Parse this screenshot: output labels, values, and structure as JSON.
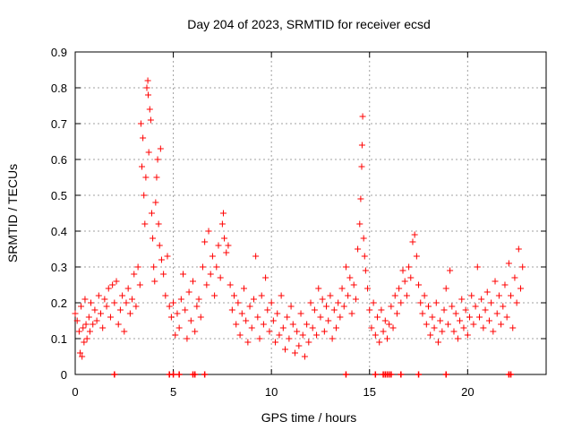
{
  "chart_data": {
    "type": "scatter",
    "title": "Day 204 of 2023, SRMTID for receiver ecsd",
    "xlabel": "GPS time / hours",
    "ylabel": "SRMTID / TECUs",
    "xlim": [
      0,
      24
    ],
    "ylim": [
      0,
      0.9
    ],
    "x_ticks": [
      "0",
      "5",
      "10",
      "15",
      "20"
    ],
    "x_tick_values": [
      0,
      5,
      10,
      15,
      20
    ],
    "y_ticks": [
      "0",
      "0.1",
      "0.2",
      "0.3",
      "0.4",
      "0.5",
      "0.6",
      "0.7",
      "0.8",
      "0.9"
    ],
    "y_tick_values": [
      0,
      0.1,
      0.2,
      0.3,
      0.4,
      0.5,
      0.6,
      0.7,
      0.8,
      0.9
    ],
    "grid": true,
    "series": [
      {
        "name": "SRMTID",
        "color": "#ff0000",
        "marker": "plus",
        "points": [
          [
            0.0,
            0.17
          ],
          [
            0.1,
            0.15
          ],
          [
            0.2,
            0.12
          ],
          [
            0.25,
            0.06
          ],
          [
            0.3,
            0.19
          ],
          [
            0.35,
            0.05
          ],
          [
            0.4,
            0.13
          ],
          [
            0.45,
            0.09
          ],
          [
            0.5,
            0.21
          ],
          [
            0.55,
            0.14
          ],
          [
            0.6,
            0.1
          ],
          [
            0.7,
            0.16
          ],
          [
            0.75,
            0.12
          ],
          [
            0.8,
            0.2
          ],
          [
            0.9,
            0.14
          ],
          [
            1.0,
            0.18
          ],
          [
            1.1,
            0.15
          ],
          [
            1.2,
            0.22
          ],
          [
            1.3,
            0.17
          ],
          [
            1.4,
            0.13
          ],
          [
            1.5,
            0.21
          ],
          [
            1.6,
            0.19
          ],
          [
            1.7,
            0.24
          ],
          [
            1.8,
            0.16
          ],
          [
            1.9,
            0.25
          ],
          [
            2.0,
            0.2
          ],
          [
            2.1,
            0.26
          ],
          [
            2.2,
            0.14
          ],
          [
            2.3,
            0.18
          ],
          [
            2.4,
            0.22
          ],
          [
            2.5,
            0.12
          ],
          [
            2.6,
            0.2
          ],
          [
            2.7,
            0.24
          ],
          [
            2.8,
            0.17
          ],
          [
            2.9,
            0.21
          ],
          [
            3.0,
            0.28
          ],
          [
            3.1,
            0.19
          ],
          [
            3.2,
            0.3
          ],
          [
            3.3,
            0.25
          ],
          [
            3.35,
            0.7
          ],
          [
            3.4,
            0.58
          ],
          [
            3.45,
            0.66
          ],
          [
            3.5,
            0.5
          ],
          [
            3.55,
            0.42
          ],
          [
            3.6,
            0.55
          ],
          [
            3.65,
            0.8
          ],
          [
            3.7,
            0.82
          ],
          [
            3.72,
            0.78
          ],
          [
            3.75,
            0.62
          ],
          [
            3.8,
            0.74
          ],
          [
            3.85,
            0.71
          ],
          [
            3.9,
            0.45
          ],
          [
            3.95,
            0.38
          ],
          [
            4.0,
            0.3
          ],
          [
            4.05,
            0.26
          ],
          [
            4.1,
            0.48
          ],
          [
            4.15,
            0.55
          ],
          [
            4.2,
            0.6
          ],
          [
            4.25,
            0.42
          ],
          [
            4.3,
            0.36
          ],
          [
            4.35,
            0.63
          ],
          [
            4.4,
            0.32
          ],
          [
            4.5,
            0.28
          ],
          [
            4.6,
            0.22
          ],
          [
            4.7,
            0.33
          ],
          [
            4.8,
            0.19
          ],
          [
            4.9,
            0.16
          ],
          [
            5.0,
            0.2
          ],
          [
            5.1,
            0.11
          ],
          [
            5.2,
            0.17
          ],
          [
            5.3,
            0.13
          ],
          [
            5.4,
            0.21
          ],
          [
            5.5,
            0.28
          ],
          [
            5.6,
            0.18
          ],
          [
            5.7,
            0.1
          ],
          [
            5.8,
            0.23
          ],
          [
            5.9,
            0.15
          ],
          [
            6.0,
            0.26
          ],
          [
            6.1,
            0.12
          ],
          [
            6.2,
            0.19
          ],
          [
            6.3,
            0.21
          ],
          [
            6.4,
            0.16
          ],
          [
            6.5,
            0.3
          ],
          [
            6.6,
            0.37
          ],
          [
            6.7,
            0.25
          ],
          [
            6.8,
            0.4
          ],
          [
            6.9,
            0.28
          ],
          [
            7.0,
            0.33
          ],
          [
            7.1,
            0.22
          ],
          [
            7.2,
            0.3
          ],
          [
            7.3,
            0.36
          ],
          [
            7.4,
            0.27
          ],
          [
            7.5,
            0.42
          ],
          [
            7.55,
            0.45
          ],
          [
            7.6,
            0.38
          ],
          [
            7.7,
            0.34
          ],
          [
            7.8,
            0.36
          ],
          [
            7.9,
            0.25
          ],
          [
            8.0,
            0.18
          ],
          [
            8.1,
            0.22
          ],
          [
            8.2,
            0.14
          ],
          [
            8.3,
            0.2
          ],
          [
            8.4,
            0.11
          ],
          [
            8.5,
            0.17
          ],
          [
            8.6,
            0.24
          ],
          [
            8.7,
            0.15
          ],
          [
            8.8,
            0.09
          ],
          [
            8.9,
            0.19
          ],
          [
            9.0,
            0.13
          ],
          [
            9.1,
            0.21
          ],
          [
            9.2,
            0.33
          ],
          [
            9.3,
            0.16
          ],
          [
            9.4,
            0.1
          ],
          [
            9.5,
            0.22
          ],
          [
            9.6,
            0.14
          ],
          [
            9.7,
            0.27
          ],
          [
            9.8,
            0.18
          ],
          [
            9.9,
            0.12
          ],
          [
            10.0,
            0.2
          ],
          [
            10.1,
            0.15
          ],
          [
            10.2,
            0.09
          ],
          [
            10.3,
            0.17
          ],
          [
            10.4,
            0.11
          ],
          [
            10.5,
            0.22
          ],
          [
            10.6,
            0.13
          ],
          [
            10.7,
            0.07
          ],
          [
            10.8,
            0.16
          ],
          [
            10.9,
            0.1
          ],
          [
            11.0,
            0.19
          ],
          [
            11.1,
            0.14
          ],
          [
            11.2,
            0.06
          ],
          [
            11.3,
            0.12
          ],
          [
            11.4,
            0.08
          ],
          [
            11.5,
            0.17
          ],
          [
            11.6,
            0.11
          ],
          [
            11.7,
            0.05
          ],
          [
            11.8,
            0.14
          ],
          [
            11.9,
            0.09
          ],
          [
            12.0,
            0.2
          ],
          [
            12.1,
            0.13
          ],
          [
            12.2,
            0.18
          ],
          [
            12.3,
            0.11
          ],
          [
            12.4,
            0.24
          ],
          [
            12.5,
            0.16
          ],
          [
            12.6,
            0.21
          ],
          [
            12.7,
            0.12
          ],
          [
            12.8,
            0.19
          ],
          [
            12.9,
            0.15
          ],
          [
            13.0,
            0.22
          ],
          [
            13.1,
            0.1
          ],
          [
            13.2,
            0.18
          ],
          [
            13.3,
            0.13
          ],
          [
            13.4,
            0.2
          ],
          [
            13.5,
            0.16
          ],
          [
            13.6,
            0.24
          ],
          [
            13.7,
            0.19
          ],
          [
            13.8,
            0.3
          ],
          [
            13.9,
            0.22
          ],
          [
            14.0,
            0.27
          ],
          [
            14.1,
            0.17
          ],
          [
            14.2,
            0.25
          ],
          [
            14.3,
            0.21
          ],
          [
            14.4,
            0.35
          ],
          [
            14.5,
            0.42
          ],
          [
            14.55,
            0.49
          ],
          [
            14.6,
            0.58
          ],
          [
            14.62,
            0.64
          ],
          [
            14.65,
            0.72
          ],
          [
            14.7,
            0.38
          ],
          [
            14.75,
            0.33
          ],
          [
            14.8,
            0.29
          ],
          [
            14.9,
            0.24
          ],
          [
            15.0,
            0.18
          ],
          [
            15.1,
            0.13
          ],
          [
            15.2,
            0.2
          ],
          [
            15.3,
            0.11
          ],
          [
            15.4,
            0.16
          ],
          [
            15.5,
            0.09
          ],
          [
            15.6,
            0.18
          ],
          [
            15.7,
            0.12
          ],
          [
            15.8,
            0.15
          ],
          [
            15.9,
            0.1
          ],
          [
            16.0,
            0.14
          ],
          [
            16.1,
            0.19
          ],
          [
            16.2,
            0.13
          ],
          [
            16.3,
            0.22
          ],
          [
            16.4,
            0.17
          ],
          [
            16.5,
            0.24
          ],
          [
            16.6,
            0.2
          ],
          [
            16.7,
            0.29
          ],
          [
            16.8,
            0.26
          ],
          [
            16.9,
            0.22
          ],
          [
            17.0,
            0.3
          ],
          [
            17.1,
            0.27
          ],
          [
            17.2,
            0.37
          ],
          [
            17.3,
            0.39
          ],
          [
            17.4,
            0.33
          ],
          [
            17.5,
            0.25
          ],
          [
            17.6,
            0.2
          ],
          [
            17.7,
            0.17
          ],
          [
            17.8,
            0.22
          ],
          [
            17.9,
            0.14
          ],
          [
            18.0,
            0.19
          ],
          [
            18.1,
            0.11
          ],
          [
            18.2,
            0.16
          ],
          [
            18.3,
            0.13
          ],
          [
            18.4,
            0.2
          ],
          [
            18.5,
            0.09
          ],
          [
            18.6,
            0.15
          ],
          [
            18.7,
            0.12
          ],
          [
            18.8,
            0.18
          ],
          [
            18.9,
            0.24
          ],
          [
            19.0,
            0.14
          ],
          [
            19.1,
            0.29
          ],
          [
            19.2,
            0.19
          ],
          [
            19.3,
            0.12
          ],
          [
            19.4,
            0.17
          ],
          [
            19.5,
            0.1
          ],
          [
            19.6,
            0.15
          ],
          [
            19.7,
            0.21
          ],
          [
            19.8,
            0.13
          ],
          [
            19.9,
            0.18
          ],
          [
            20.0,
            0.11
          ],
          [
            20.1,
            0.16
          ],
          [
            20.2,
            0.22
          ],
          [
            20.3,
            0.14
          ],
          [
            20.4,
            0.19
          ],
          [
            20.5,
            0.3
          ],
          [
            20.6,
            0.16
          ],
          [
            20.7,
            0.21
          ],
          [
            20.8,
            0.13
          ],
          [
            20.9,
            0.18
          ],
          [
            21.0,
            0.23
          ],
          [
            21.1,
            0.15
          ],
          [
            21.2,
            0.2
          ],
          [
            21.3,
            0.12
          ],
          [
            21.4,
            0.26
          ],
          [
            21.5,
            0.17
          ],
          [
            21.6,
            0.22
          ],
          [
            21.7,
            0.14
          ],
          [
            21.8,
            0.19
          ],
          [
            21.9,
            0.25
          ],
          [
            22.0,
            0.16
          ],
          [
            22.1,
            0.31
          ],
          [
            22.2,
            0.22
          ],
          [
            22.3,
            0.13
          ],
          [
            22.4,
            0.27
          ],
          [
            22.5,
            0.2
          ],
          [
            22.6,
            0.35
          ],
          [
            22.7,
            0.24
          ],
          [
            22.8,
            0.3
          ]
        ]
      }
    ],
    "zero_markers_x": [
      2.0,
      4.8,
      5.0,
      5.3,
      6.0,
      6.1,
      6.6,
      13.8,
      15.3,
      15.7,
      15.8,
      15.9,
      16.0,
      16.1,
      16.6,
      17.5,
      18.9,
      22.1,
      22.2
    ]
  }
}
